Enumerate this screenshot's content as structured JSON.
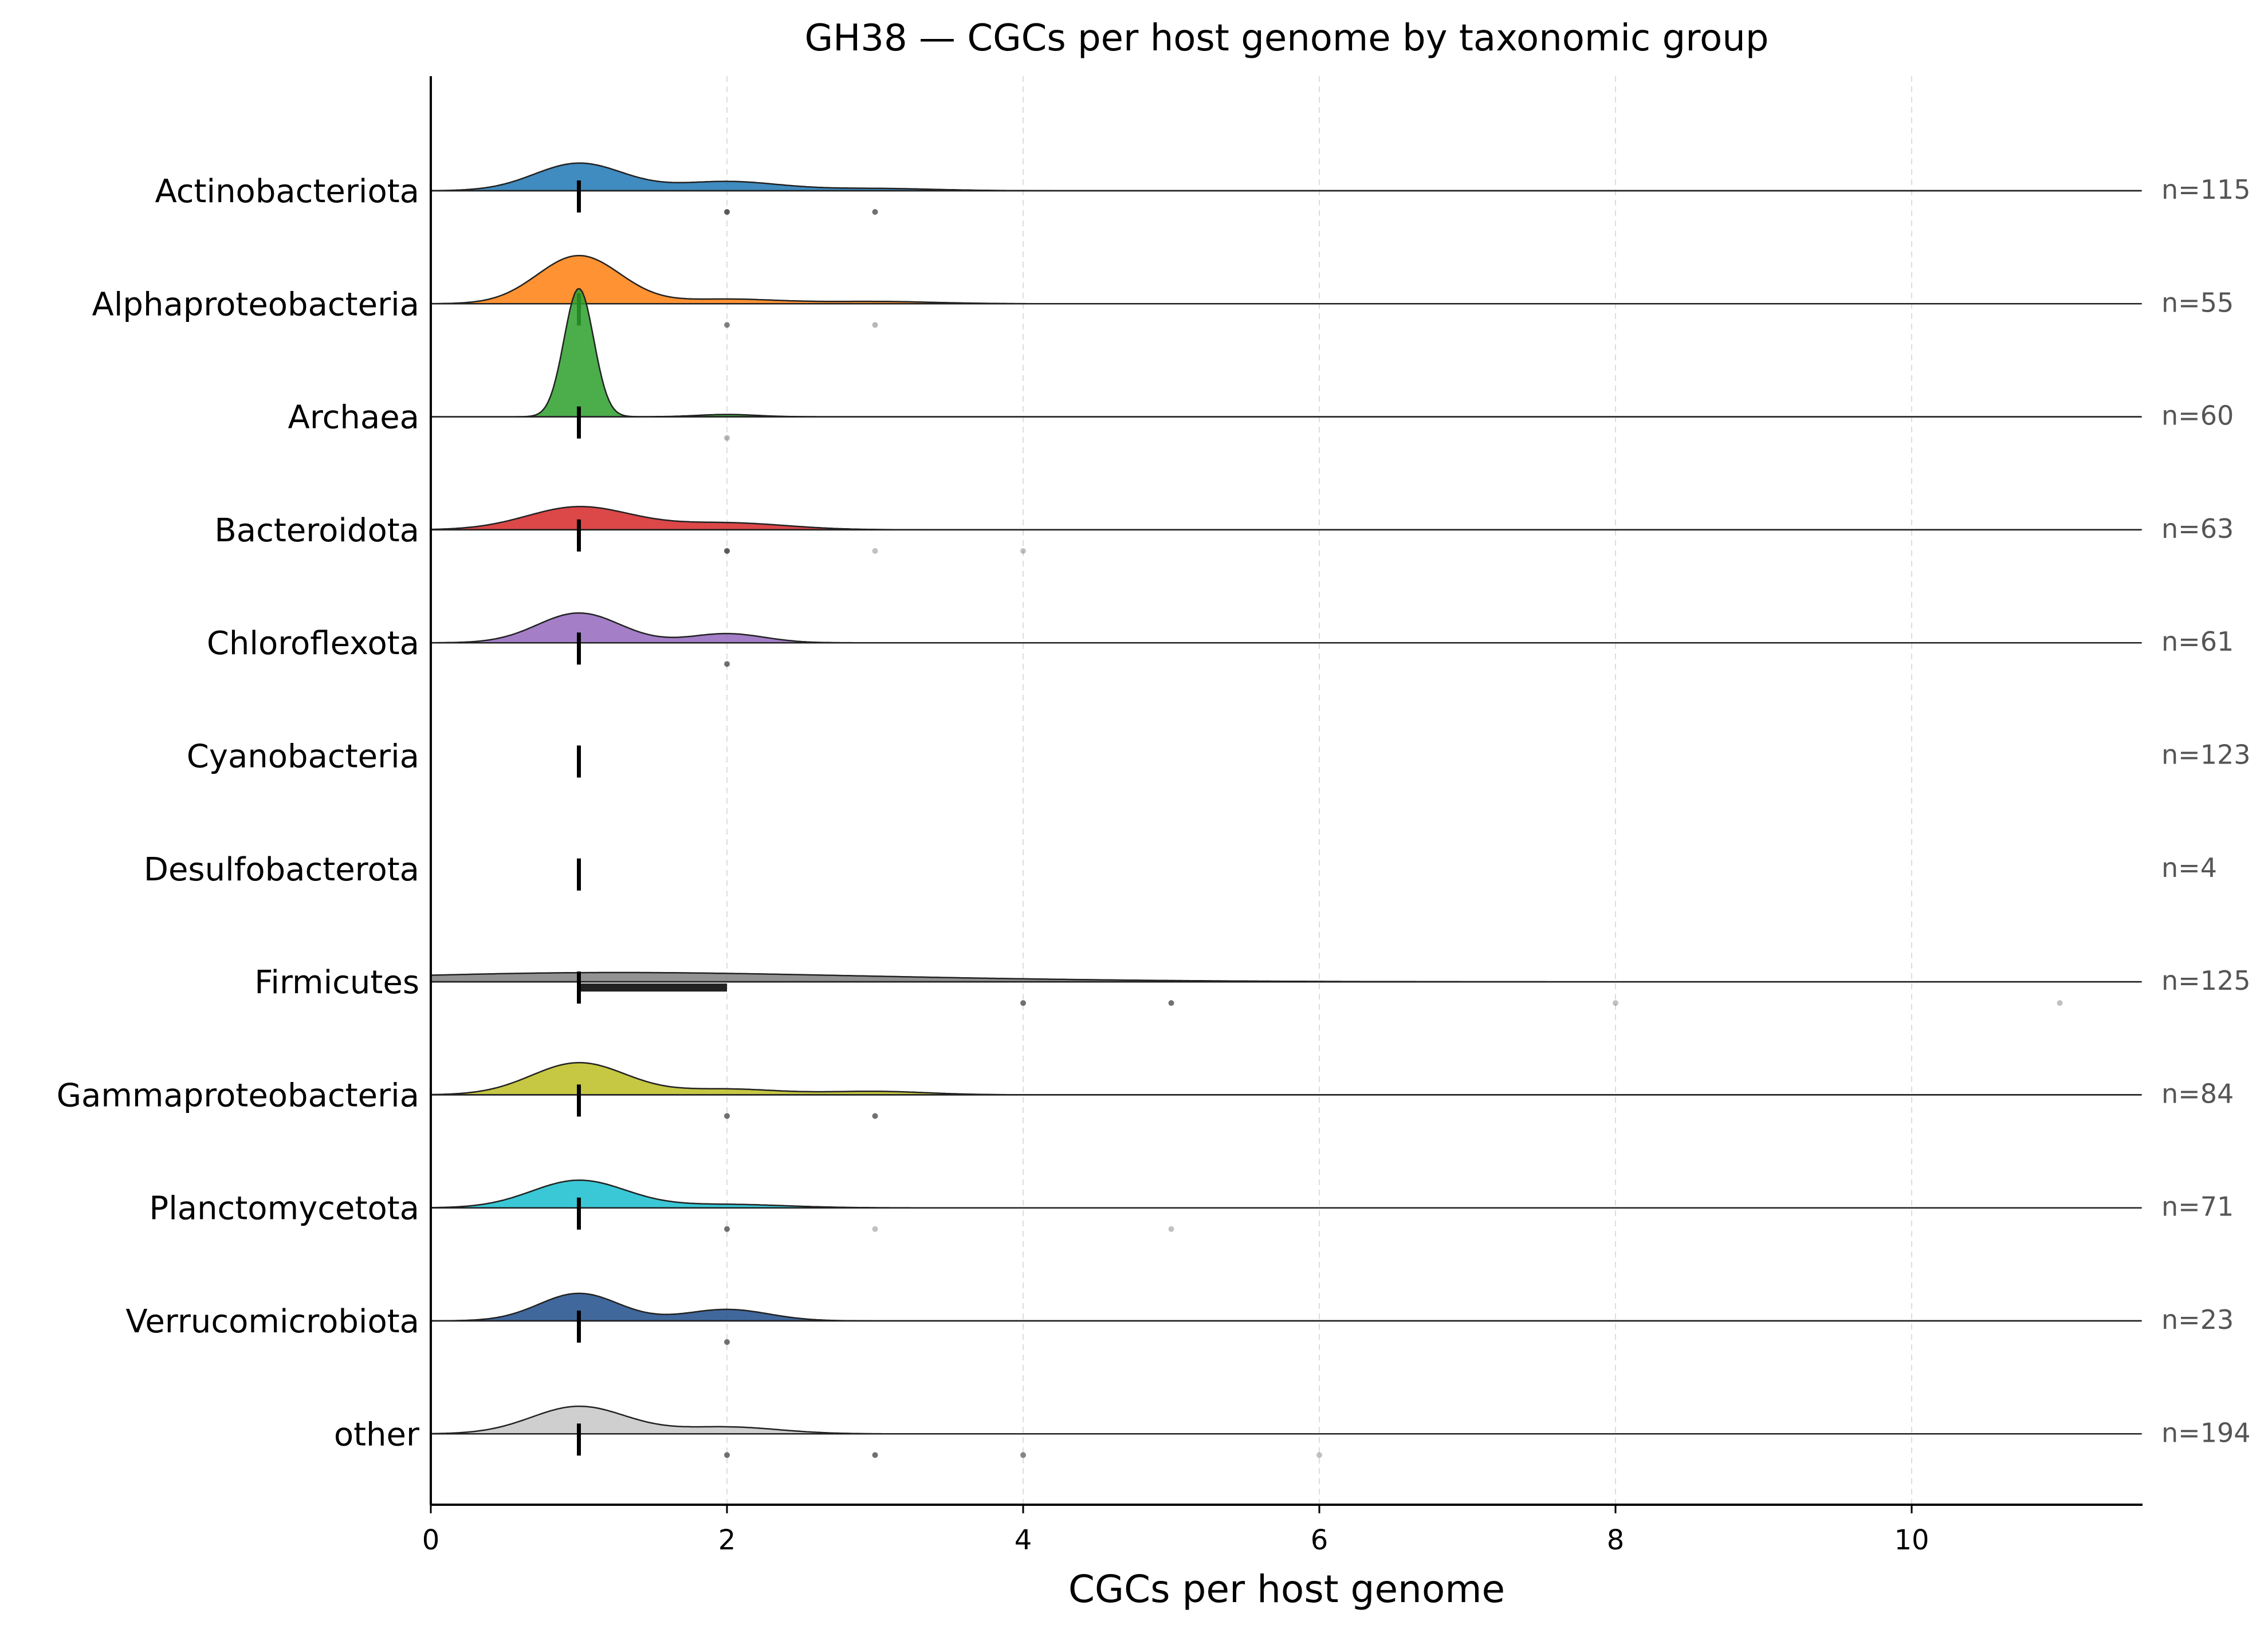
{
  "chart_data": {
    "type": "ridgeline",
    "title": "GH38 — CGCs per host genome by taxonomic group",
    "xlabel": "CGCs per host genome",
    "ylabel": "",
    "xlim": [
      0,
      11.55
    ],
    "xticks": [
      0,
      2,
      4,
      6,
      8,
      10
    ],
    "grid": "vertical dashed",
    "rows": [
      {
        "group": "Actinobacteriota",
        "n_label": "n=115",
        "color": "#1f77b4",
        "median": 1,
        "iqr": [
          1,
          1
        ],
        "density": [
          {
            "x": 1,
            "h": 0.12,
            "w": 0.3
          },
          {
            "x": 2,
            "h": 0.04,
            "w": 0.35
          },
          {
            "x": 3,
            "h": 0.01,
            "w": 0.4
          }
        ],
        "outliers": [
          {
            "x": 2,
            "a": 0.8
          },
          {
            "x": 3,
            "a": 0.7
          }
        ]
      },
      {
        "group": "Alphaproteobacteria",
        "n_label": "n=55",
        "color": "#ff7f0e",
        "median": 1,
        "iqr": [
          1,
          1
        ],
        "density": [
          {
            "x": 1,
            "h": 0.21,
            "w": 0.28
          },
          {
            "x": 2,
            "h": 0.02,
            "w": 0.35
          },
          {
            "x": 3,
            "h": 0.01,
            "w": 0.4
          }
        ],
        "outliers": [
          {
            "x": 2,
            "a": 0.6
          },
          {
            "x": 3,
            "a": 0.35
          }
        ]
      },
      {
        "group": "Archaea",
        "n_label": "n=60",
        "color": "#2ca02c",
        "median": 1,
        "iqr": [
          1,
          1
        ],
        "density": [
          {
            "x": 1,
            "h": 0.56,
            "w": 0.1
          },
          {
            "x": 2,
            "h": 0.01,
            "w": 0.2
          }
        ],
        "outliers": [
          {
            "x": 2,
            "a": 0.35
          }
        ]
      },
      {
        "group": "Bacteroidota",
        "n_label": "n=63",
        "color": "#d62728",
        "median": 1,
        "iqr": [
          1,
          1
        ],
        "density": [
          {
            "x": 1,
            "h": 0.1,
            "w": 0.35
          },
          {
            "x": 2,
            "h": 0.03,
            "w": 0.4
          }
        ],
        "outliers": [
          {
            "x": 2,
            "a": 0.8
          },
          {
            "x": 3,
            "a": 0.3
          },
          {
            "x": 4,
            "a": 0.3
          }
        ]
      },
      {
        "group": "Chloroflexota",
        "n_label": "n=61",
        "color": "#9467bd",
        "median": 1,
        "iqr": [
          1,
          1
        ],
        "density": [
          {
            "x": 1,
            "h": 0.13,
            "w": 0.28
          },
          {
            "x": 2,
            "h": 0.04,
            "w": 0.25
          }
        ],
        "outliers": [
          {
            "x": 2,
            "a": 0.7
          }
        ]
      },
      {
        "group": "Cyanobacteria",
        "n_label": "n=123",
        "color": "#8c564b",
        "median": 1,
        "iqr": [
          1,
          1
        ],
        "density": [],
        "outliers": []
      },
      {
        "group": "Desulfobacterota",
        "n_label": "n=4",
        "color": "#e377c2",
        "median": 1,
        "iqr": [
          1,
          1
        ],
        "density": [],
        "outliers": []
      },
      {
        "group": "Firmicutes",
        "n_label": "n=125",
        "color": "#7f7f7f",
        "median": 1,
        "iqr": [
          1,
          2
        ],
        "density": [
          {
            "x": 1,
            "h": 0.035,
            "w": 1.4
          },
          {
            "x": 3,
            "h": 0.012,
            "w": 1.5
          }
        ],
        "outliers": [
          {
            "x": 4,
            "a": 0.7
          },
          {
            "x": 5,
            "a": 0.7
          },
          {
            "x": 8,
            "a": 0.3
          },
          {
            "x": 11,
            "a": 0.3
          }
        ]
      },
      {
        "group": "Gammaproteobacteria",
        "n_label": "n=84",
        "color": "#bcbd22",
        "median": 1,
        "iqr": [
          1,
          1
        ],
        "density": [
          {
            "x": 1,
            "h": 0.14,
            "w": 0.32
          },
          {
            "x": 2,
            "h": 0.025,
            "w": 0.35
          },
          {
            "x": 3,
            "h": 0.015,
            "w": 0.35
          }
        ],
        "outliers": [
          {
            "x": 2,
            "a": 0.7
          },
          {
            "x": 3,
            "a": 0.7
          }
        ]
      },
      {
        "group": "Planctomycetota",
        "n_label": "n=71",
        "color": "#17becf",
        "median": 1,
        "iqr": [
          1,
          1
        ],
        "density": [
          {
            "x": 1,
            "h": 0.12,
            "w": 0.32
          },
          {
            "x": 2,
            "h": 0.015,
            "w": 0.4
          }
        ],
        "outliers": [
          {
            "x": 2,
            "a": 0.7
          },
          {
            "x": 3,
            "a": 0.3
          },
          {
            "x": 5,
            "a": 0.3
          }
        ]
      },
      {
        "group": "Verrucomicrobiota",
        "n_label": "n=23",
        "color": "#1f4e8c",
        "median": 1,
        "iqr": [
          1,
          1
        ],
        "density": [
          {
            "x": 1,
            "h": 0.12,
            "w": 0.27
          },
          {
            "x": 2,
            "h": 0.05,
            "w": 0.28
          }
        ],
        "outliers": [
          {
            "x": 2,
            "a": 0.7
          }
        ]
      },
      {
        "group": "other",
        "n_label": "n=194",
        "color": "#c7c7c7",
        "median": 1,
        "iqr": [
          1,
          1
        ],
        "density": [
          {
            "x": 1,
            "h": 0.12,
            "w": 0.32
          },
          {
            "x": 2,
            "h": 0.03,
            "w": 0.35
          }
        ],
        "outliers": [
          {
            "x": 2,
            "a": 0.7
          },
          {
            "x": 3,
            "a": 0.7
          },
          {
            "x": 4,
            "a": 0.6
          },
          {
            "x": 6,
            "a": 0.3
          }
        ]
      }
    ]
  }
}
